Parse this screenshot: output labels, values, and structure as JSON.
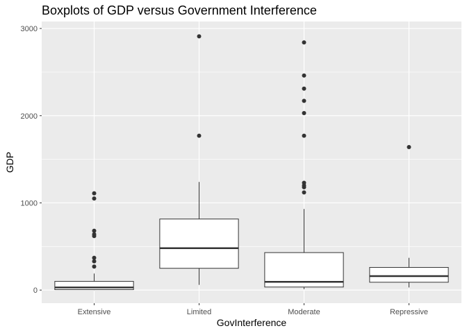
{
  "chart_data": {
    "type": "boxplot",
    "title": "Boxplots of GDP versus Government Interference",
    "xlabel": "GovInterference",
    "ylabel": "GDP",
    "categories": [
      "Extensive",
      "Limited",
      "Moderate",
      "Repressive"
    ],
    "ylim": [
      -150,
      3080
    ],
    "yticks": [
      0,
      1000,
      2000,
      3000
    ],
    "yticklabels": [
      "0",
      "1000",
      "2000",
      "3000"
    ],
    "grid": true,
    "colors": {
      "panel": "#ebebeb",
      "grid": "#ffffff",
      "box": "#333333",
      "box_fill": "#ffffff"
    },
    "boxes": [
      {
        "category": "Extensive",
        "whisker_low": 0,
        "q1": 5,
        "median": 30,
        "q3": 100,
        "whisker_high": 190,
        "outliers": [
          270,
          330,
          370,
          620,
          640,
          680,
          1050,
          1110
        ]
      },
      {
        "category": "Limited",
        "whisker_low": 60,
        "q1": 250,
        "median": 480,
        "q3": 815,
        "whisker_high": 1240,
        "outliers": [
          1770,
          2910
        ]
      },
      {
        "category": "Moderate",
        "whisker_low": 10,
        "q1": 35,
        "median": 95,
        "q3": 430,
        "whisker_high": 930,
        "outliers": [
          1120,
          1180,
          1200,
          1230,
          1770,
          2030,
          2170,
          2310,
          2460,
          2840
        ]
      },
      {
        "category": "Repressive",
        "whisker_low": 30,
        "q1": 90,
        "median": 160,
        "q3": 260,
        "whisker_high": 370,
        "outliers": [
          1640
        ]
      }
    ]
  }
}
